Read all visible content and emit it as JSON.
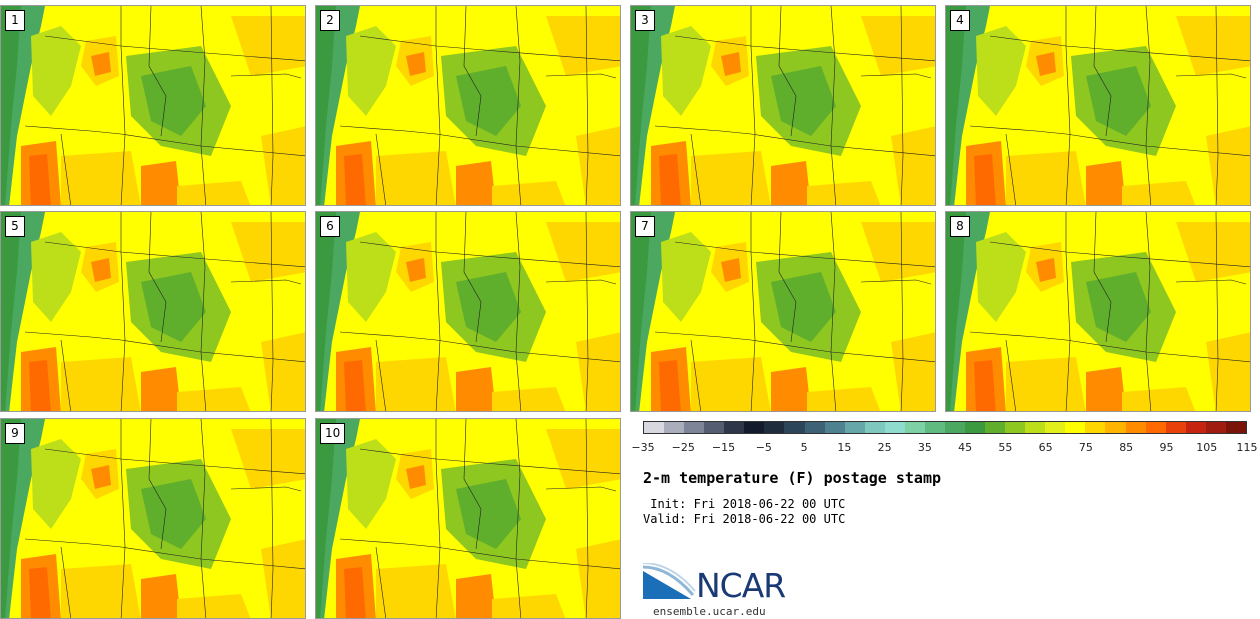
{
  "panels": [
    {
      "label": "1"
    },
    {
      "label": "2"
    },
    {
      "label": "3"
    },
    {
      "label": "4"
    },
    {
      "label": "5"
    },
    {
      "label": "6"
    },
    {
      "label": "7"
    },
    {
      "label": "8"
    },
    {
      "label": "9"
    },
    {
      "label": "10"
    }
  ],
  "colorbar": {
    "colors": [
      "#d7d8e0",
      "#a9adbc",
      "#7f8598",
      "#555d72",
      "#2e364a",
      "#121a2b",
      "#1e2c3e",
      "#2c4558",
      "#3d6275",
      "#4f8290",
      "#66a8a9",
      "#7ec8c0",
      "#8fdccf",
      "#7ed1a5",
      "#60bb80",
      "#4aa860",
      "#3b9a3f",
      "#5fae2c",
      "#8ec71f",
      "#bddf1a",
      "#e2ef1a",
      "#ffff00",
      "#ffd700",
      "#ffb400",
      "#ff8c00",
      "#ff6a00",
      "#e8410a",
      "#c42410",
      "#a01c10",
      "#7a1408"
    ],
    "tick_labels": [
      "−35",
      "−25",
      "−15",
      "−5",
      "5",
      "15",
      "25",
      "35",
      "45",
      "55",
      "65",
      "75",
      "85",
      "95",
      "105",
      "115"
    ]
  },
  "title": "2-m temperature (F) postage stamp",
  "init": " Init: Fri 2018-06-22 00 UTC",
  "valid": "Valid: Fri 2018-06-22 00 UTC",
  "logo": {
    "text": "NCAR",
    "site": "ensemble.ucar.edu",
    "color": "#1a3a76",
    "accent": "#1a6fb8"
  },
  "map_colors": {
    "ocean": "#4aa860",
    "ocean_dark": "#3b9a3f",
    "land": "#ffff00",
    "warm": "#ffd700",
    "hot": "#ff8c00",
    "hotter": "#ff6a00",
    "cool": "#bddf1a",
    "mid": "#8ec71f",
    "mountain": "#5fae2c",
    "border": "#222222"
  }
}
